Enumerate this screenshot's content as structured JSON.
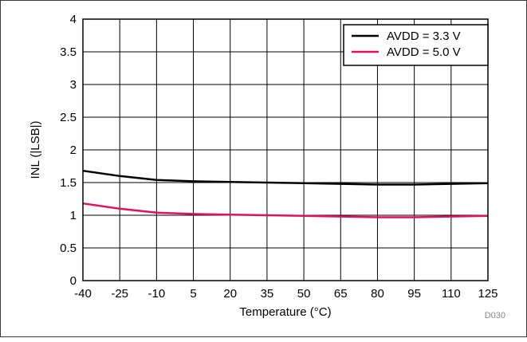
{
  "chart_data": {
    "type": "line",
    "xlabel": "Temperature (°C)",
    "ylabel": "INL (|LSB|)",
    "xlim": [
      -40,
      125
    ],
    "ylim": [
      0,
      4
    ],
    "xticks": [
      -40,
      -25,
      -10,
      5,
      20,
      35,
      50,
      65,
      80,
      95,
      110,
      125
    ],
    "yticks": [
      0,
      0.5,
      1,
      1.5,
      2,
      2.5,
      3,
      3.5,
      4
    ],
    "ytick_labels": [
      "0",
      "0.5",
      "1",
      "1.5",
      "2",
      "2.5",
      "3",
      "3.5",
      "4"
    ],
    "grid": true,
    "legend_position": "top-right",
    "series": [
      {
        "name": "AVDD = 3.3 V",
        "color": "#000000",
        "x": [
          -40,
          -25,
          -10,
          5,
          20,
          35,
          50,
          65,
          80,
          95,
          110,
          125
        ],
        "y": [
          1.68,
          1.6,
          1.54,
          1.52,
          1.51,
          1.5,
          1.49,
          1.48,
          1.47,
          1.47,
          1.48,
          1.49
        ]
      },
      {
        "name": "AVDD = 5.0 V",
        "color": "#e0115f",
        "x": [
          -40,
          -25,
          -10,
          5,
          20,
          35,
          50,
          65,
          80,
          95,
          110,
          125
        ],
        "y": [
          1.18,
          1.1,
          1.04,
          1.02,
          1.01,
          1.0,
          0.99,
          0.98,
          0.97,
          0.97,
          0.98,
          0.99
        ]
      }
    ],
    "figure_id": "D030"
  }
}
